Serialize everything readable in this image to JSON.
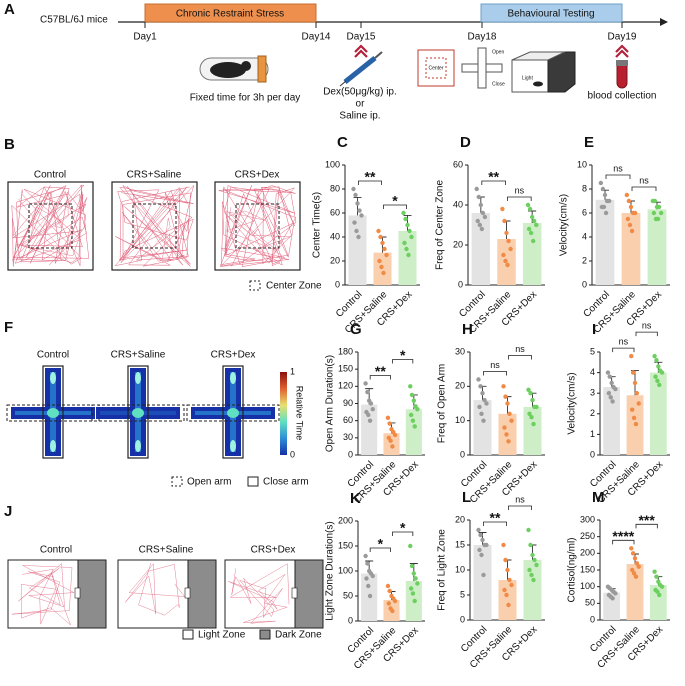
{
  "panel_a": {
    "label": "A",
    "subject": "C57BL/6J mice",
    "phases": [
      "Chronic Restraint Stress",
      "Behavioural Testing"
    ],
    "days": [
      "Day1",
      "Day14",
      "Day15",
      "Day18",
      "Day19"
    ],
    "notes": [
      "Fixed time for 3h per day",
      "Dex(50μg/kg) ip.",
      "or",
      "Saline ip.",
      "blood collection"
    ],
    "icon_labels": [
      "Center",
      "Open",
      "Close",
      "Light"
    ]
  },
  "panel_b": {
    "label": "B",
    "groups": [
      "Control",
      "CRS+Saline",
      "CRS+Dex"
    ],
    "legend": [
      "Center Zone"
    ]
  },
  "panel_f": {
    "label": "F",
    "groups": [
      "Control",
      "CRS+Saline",
      "CRS+Dex"
    ],
    "legend": [
      "Open arm",
      "Close arm"
    ],
    "colorbar": {
      "title": "Relative Time",
      "ticks": [
        0,
        1
      ]
    }
  },
  "panel_j": {
    "label": "J",
    "groups": [
      "Control",
      "CRS+Saline",
      "CRS+Dex"
    ],
    "legend": [
      "Light Zone",
      "Dark Zone"
    ]
  },
  "chart_data": [
    {
      "type": "bar",
      "label": "C",
      "ylabel": "Center Time(s)",
      "categories": [
        "Control",
        "CRS+Saline",
        "CRS+Dex"
      ],
      "values": [
        58,
        27,
        45
      ],
      "errors": [
        15,
        13,
        13
      ],
      "points": [
        [
          80,
          75,
          68,
          62,
          58,
          52,
          45,
          40
        ],
        [
          45,
          40,
          35,
          30,
          25,
          20,
          15,
          10
        ],
        [
          60,
          55,
          50,
          45,
          40,
          35,
          30,
          25
        ]
      ],
      "bar_colors": [
        "#e3e3e3",
        "#f9cfae",
        "#cdeec6"
      ],
      "point_colors": [
        "#9a9a9a",
        "#f08a45",
        "#6ccf5f"
      ],
      "ylim": [
        0,
        100
      ],
      "yticks": [
        0,
        20,
        40,
        60,
        80,
        100
      ],
      "comparisons": [
        {
          "between": [
            0,
            1
          ],
          "label": "**"
        },
        {
          "between": [
            1,
            2
          ],
          "label": "*"
        }
      ]
    },
    {
      "type": "bar",
      "label": "D",
      "ylabel": "Freq of Center Zone",
      "categories": [
        "Control",
        "CRS+Saline",
        "CRS+Dex"
      ],
      "values": [
        36,
        23,
        31
      ],
      "errors": [
        8,
        9,
        6
      ],
      "points": [
        [
          48,
          44,
          40,
          36,
          34,
          32,
          30,
          28
        ],
        [
          38,
          32,
          26,
          22,
          18,
          15,
          12,
          10
        ],
        [
          40,
          38,
          34,
          32,
          30,
          28,
          26,
          22
        ]
      ],
      "bar_colors": [
        "#e3e3e3",
        "#f9cfae",
        "#cdeec6"
      ],
      "point_colors": [
        "#9a9a9a",
        "#f08a45",
        "#6ccf5f"
      ],
      "ylim": [
        0,
        60
      ],
      "yticks": [
        0,
        20,
        40,
        60
      ],
      "comparisons": [
        {
          "between": [
            0,
            1
          ],
          "label": "**"
        },
        {
          "between": [
            1,
            2
          ],
          "label": "ns"
        }
      ]
    },
    {
      "type": "bar",
      "label": "E",
      "ylabel": "Velocity(cm/s)",
      "categories": [
        "Control",
        "CRS+Saline",
        "CRS+Dex"
      ],
      "values": [
        7.1,
        6,
        6.3
      ],
      "errors": [
        0.8,
        1,
        0.6
      ],
      "points": [
        [
          8.5,
          8,
          7.5,
          7,
          7,
          6.5,
          6.5,
          6
        ],
        [
          7.5,
          7,
          6.5,
          6,
          6,
          5.5,
          5,
          4.5
        ],
        [
          7,
          7,
          6.5,
          6.5,
          6,
          6,
          5.5,
          5.5
        ]
      ],
      "bar_colors": [
        "#e3e3e3",
        "#f9cfae",
        "#cdeec6"
      ],
      "point_colors": [
        "#9a9a9a",
        "#f08a45",
        "#6ccf5f"
      ],
      "ylim": [
        0,
        10
      ],
      "yticks": [
        0,
        2,
        4,
        6,
        8,
        10
      ],
      "comparisons": [
        {
          "between": [
            0,
            1
          ],
          "label": "ns"
        },
        {
          "between": [
            1,
            2
          ],
          "label": "ns"
        }
      ]
    },
    {
      "type": "bar",
      "label": "G",
      "ylabel": "Open Arm Duration(s)",
      "categories": [
        "Control",
        "CRS+Saline",
        "CRS+Dex"
      ],
      "values": [
        88,
        38,
        80
      ],
      "errors": [
        28,
        18,
        25
      ],
      "points": [
        [
          125,
          110,
          95,
          90,
          80,
          75,
          70,
          60
        ],
        [
          65,
          55,
          45,
          40,
          35,
          30,
          25,
          15
        ],
        [
          120,
          105,
          95,
          85,
          80,
          70,
          60,
          50
        ]
      ],
      "bar_colors": [
        "#e3e3e3",
        "#f9cfae",
        "#cdeec6"
      ],
      "point_colors": [
        "#9a9a9a",
        "#f08a45",
        "#6ccf5f"
      ],
      "ylim": [
        0,
        180
      ],
      "yticks": [
        0,
        30,
        60,
        90,
        120,
        150,
        180
      ],
      "comparisons": [
        {
          "between": [
            0,
            1
          ],
          "label": "**"
        },
        {
          "between": [
            1,
            2
          ],
          "label": "*"
        }
      ]
    },
    {
      "type": "bar",
      "label": "H",
      "ylabel": "Freq of Open Arm",
      "categories": [
        "Control",
        "CRS+Saline",
        "CRS+Dex"
      ],
      "values": [
        16,
        12,
        14
      ],
      "errors": [
        4,
        5,
        4
      ],
      "points": [
        [
          22,
          20,
          18,
          16,
          15,
          14,
          12,
          10
        ],
        [
          20,
          17,
          15,
          12,
          10,
          8,
          6,
          4
        ],
        [
          19,
          18,
          16,
          14,
          14,
          12,
          11,
          9
        ]
      ],
      "bar_colors": [
        "#e3e3e3",
        "#f9cfae",
        "#cdeec6"
      ],
      "point_colors": [
        "#9a9a9a",
        "#f08a45",
        "#6ccf5f"
      ],
      "ylim": [
        0,
        30
      ],
      "yticks": [
        0,
        10,
        20,
        30
      ],
      "comparisons": [
        {
          "between": [
            0,
            1
          ],
          "label": "ns"
        },
        {
          "between": [
            1,
            2
          ],
          "label": "ns"
        }
      ]
    },
    {
      "type": "bar",
      "label": "I",
      "ylabel": "Velocity(cm/s)",
      "categories": [
        "Control",
        "CRS+Saline",
        "CRS+Dex"
      ],
      "values": [
        3.3,
        2.9,
        4
      ],
      "errors": [
        0.5,
        1.2,
        0.5
      ],
      "points": [
        [
          4,
          3.8,
          3.5,
          3.3,
          3.2,
          3,
          2.8,
          2.6
        ],
        [
          4.8,
          4,
          3.5,
          3,
          2.5,
          2.2,
          1.8,
          1.5
        ],
        [
          4.8,
          4.6,
          4.3,
          4.1,
          4,
          3.8,
          3.6,
          3.4
        ]
      ],
      "bar_colors": [
        "#e3e3e3",
        "#f9cfae",
        "#cdeec6"
      ],
      "point_colors": [
        "#9a9a9a",
        "#f08a45",
        "#6ccf5f"
      ],
      "ylim": [
        0,
        5
      ],
      "yticks": [
        0,
        1,
        2,
        3,
        4,
        5
      ],
      "comparisons": [
        {
          "between": [
            0,
            1
          ],
          "label": "ns"
        },
        {
          "between": [
            1,
            2
          ],
          "label": "ns"
        }
      ]
    },
    {
      "type": "bar",
      "label": "K",
      "ylabel": "Light Zone Duration(s)",
      "categories": [
        "Control",
        "CRS+Saline",
        "CRS+Dex"
      ],
      "values": [
        95,
        42,
        80
      ],
      "errors": [
        25,
        17,
        35
      ],
      "points": [
        [
          130,
          115,
          100,
          95,
          90,
          85,
          70,
          50
        ],
        [
          70,
          60,
          50,
          45,
          40,
          35,
          25,
          20
        ],
        [
          150,
          110,
          95,
          85,
          75,
          65,
          55,
          40
        ]
      ],
      "bar_colors": [
        "#e3e3e3",
        "#f9cfae",
        "#cdeec6"
      ],
      "point_colors": [
        "#9a9a9a",
        "#f08a45",
        "#6ccf5f"
      ],
      "ylim": [
        0,
        200
      ],
      "yticks": [
        0,
        50,
        100,
        150,
        200
      ],
      "comparisons": [
        {
          "between": [
            0,
            1
          ],
          "label": "*"
        },
        {
          "between": [
            1,
            2
          ],
          "label": "*"
        }
      ]
    },
    {
      "type": "bar",
      "label": "L",
      "ylabel": "Freq of Light Zone",
      "categories": [
        "Control",
        "CRS+Saline",
        "CRS+Dex"
      ],
      "values": [
        15,
        8,
        12
      ],
      "errors": [
        2.5,
        4,
        3
      ],
      "points": [
        [
          18,
          17,
          16,
          15,
          15,
          14,
          13,
          9
        ],
        [
          15,
          12,
          10,
          8,
          7,
          6,
          5,
          3
        ],
        [
          18,
          15,
          13,
          12,
          11,
          10,
          9,
          8
        ]
      ],
      "bar_colors": [
        "#e3e3e3",
        "#f9cfae",
        "#cdeec6"
      ],
      "point_colors": [
        "#9a9a9a",
        "#f08a45",
        "#6ccf5f"
      ],
      "ylim": [
        0,
        20
      ],
      "yticks": [
        0,
        5,
        10,
        15,
        20
      ],
      "comparisons": [
        {
          "between": [
            0,
            1
          ],
          "label": "**"
        },
        {
          "between": [
            1,
            2
          ],
          "label": "ns"
        }
      ]
    },
    {
      "type": "bar",
      "label": "M",
      "ylabel": "Cortisol(ng/ml)",
      "categories": [
        "Control",
        "CRS+Saline",
        "CRS+Dex"
      ],
      "values": [
        82,
        168,
        105
      ],
      "errors": [
        12,
        30,
        25
      ],
      "points": [
        [
          100,
          95,
          90,
          85,
          80,
          75,
          70,
          65
        ],
        [
          215,
          200,
          185,
          170,
          160,
          150,
          140,
          130
        ],
        [
          145,
          130,
          115,
          105,
          100,
          90,
          85,
          75
        ]
      ],
      "bar_colors": [
        "#e3e3e3",
        "#f9cfae",
        "#cdeec6"
      ],
      "point_colors": [
        "#9a9a9a",
        "#f08a45",
        "#6ccf5f"
      ],
      "ylim": [
        0,
        300
      ],
      "yticks": [
        0,
        50,
        100,
        150,
        200,
        250,
        300
      ],
      "comparisons": [
        {
          "between": [
            0,
            1
          ],
          "label": "****"
        },
        {
          "between": [
            1,
            2
          ],
          "label": "***"
        }
      ]
    }
  ]
}
